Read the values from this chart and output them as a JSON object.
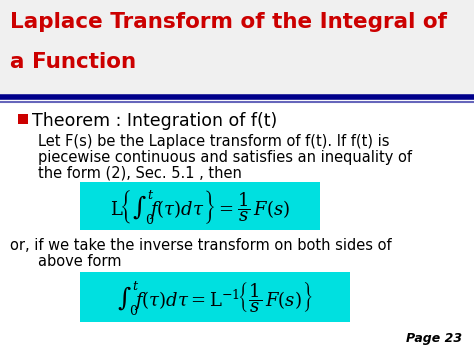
{
  "title_line1": "Laplace Transform of the Integral of",
  "title_line2": "a Function",
  "title_color": "#cc0000",
  "title_fontsize": 15.5,
  "separator_color": "#00008b",
  "separator_color2": "#6666bb",
  "bullet_color": "#cc0000",
  "bullet_text": "Theorem : Integration of f(t)",
  "bullet_fontsize": 12.5,
  "body_text1": "Let F(s) be the Laplace transform of f(t). If f(t) is",
  "body_text2": "piecewise continuous and satisfies an inequality of",
  "body_text3": "the form (2), Sec. 5.1 , then",
  "body_fontsize": 10.5,
  "formula1_fontsize": 13,
  "formula_bg": "#00e0e0",
  "or_text1": "or, if we take the inverse transform on both sides of",
  "or_text2": "above form",
  "or_fontsize": 10.5,
  "formula2_fontsize": 13,
  "page_text": "Page 23",
  "page_fontsize": 9,
  "title_bg": "#f0f0f0",
  "slide_bg": "#ffffff"
}
